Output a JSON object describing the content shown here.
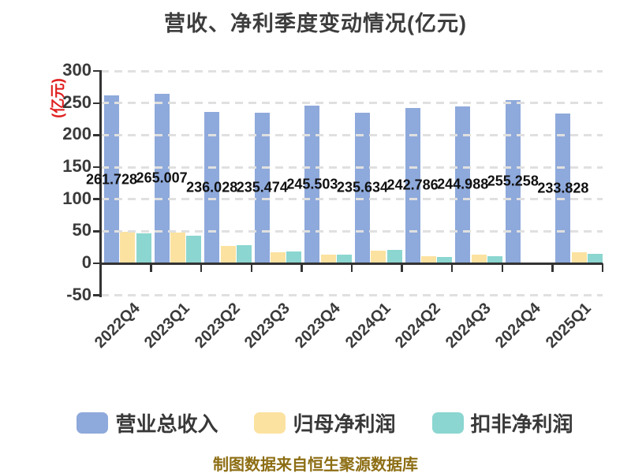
{
  "title": "营收、净利季度变动情况(亿元)",
  "y_axis_unit": "(亿元)",
  "footer_note": "制图数据来自恒生聚源数据库",
  "colors": {
    "axis": "#333333",
    "gridline": "#e0e0e0",
    "title_text": "#3d3d3d",
    "tick_label_text": "#3a3a3a",
    "data_label_text": "#111111",
    "unit_label_red": "#e02020",
    "footer_gold": "#8d6e14",
    "bar_blue": "#8EA9DB",
    "bar_yellow": "#FBE2A0",
    "bar_teal": "#8BD6D0"
  },
  "chart_data": {
    "type": "bar",
    "title": "营收、净利季度变动情况(亿元)",
    "xlabel": "",
    "ylabel": "(亿元)",
    "ylim": [
      -50,
      300
    ],
    "y_ticks": [
      300,
      250,
      200,
      150,
      100,
      50,
      0,
      -50
    ],
    "grid": "horizontal dashed lines at every 50",
    "legend_position": "bottom",
    "categories": [
      "2022Q4",
      "2023Q1",
      "2023Q2",
      "2023Q3",
      "2023Q4",
      "2024Q1",
      "2024Q2",
      "2024Q3",
      "2024Q4",
      "2025Q1"
    ],
    "series": [
      {
        "key": "total-revenue",
        "name": "营业总收入",
        "color": "#8EA9DB",
        "values": [
          261.728,
          265.007,
          236.028,
          235.474,
          245.503,
          235.634,
          242.786,
          244.988,
          255.258,
          233.828
        ],
        "data_labels": [
          "261.728",
          "265.007",
          "236.028",
          "235.474",
          "245.503",
          "235.634",
          "242.786",
          "244.988",
          "255.258",
          "233.828"
        ]
      },
      {
        "key": "net-profit",
        "name": "归母净利润",
        "color": "#FBE2A0",
        "values": [
          49.4,
          48.0,
          27.3,
          17.8,
          14.1,
          20.0,
          10.8,
          13.7,
          1.3,
          17.0
        ]
      },
      {
        "key": "deducted-net-profit",
        "name": "扣非净利润",
        "color": "#8BD6D0",
        "values": [
          47.0,
          43.3,
          27.9,
          18.6,
          13.6,
          20.6,
          10.1,
          11.2,
          0.6,
          14.4
        ]
      }
    ]
  }
}
